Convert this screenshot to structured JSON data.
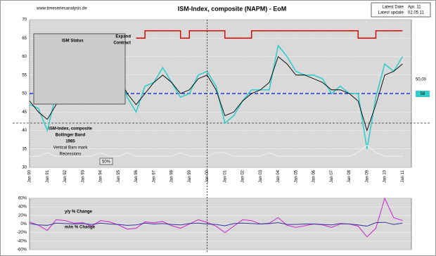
{
  "chart_data": [
    {
      "type": "line",
      "title": "ISM-Index, composite (NAPM) - EoM",
      "website": "www.timeseriesanalysis.de",
      "latest_date_label": "Latest Date",
      "latest_date": "Apr. 11",
      "latest_update_label": "Latest update",
      "latest_update": "02.05.11",
      "status_title": "ISM Status",
      "expand_label": "Expand",
      "contract_label": "Contract",
      "legend_lines": [
        "ISM-Index, composite",
        "Bollinger Band",
        "1985",
        "Vertical Bars mark",
        "Recessions"
      ],
      "band_label": "50%",
      "latest_value_label": "58",
      "x": [
        1990,
        1990.5,
        1991,
        1991.5,
        1992,
        1992.5,
        1993,
        1993.5,
        1994,
        1994.5,
        1995,
        1995.5,
        1996,
        1996.5,
        1997,
        1997.5,
        1998,
        1998.5,
        1999,
        1999.5,
        2000,
        2000.5,
        2001,
        2001.5,
        2002,
        2002.5,
        2003,
        2003.5,
        2004,
        2004.5,
        2005,
        2005.5,
        2006,
        2006.5,
        2007,
        2007.5,
        2008,
        2008.5,
        2009,
        2009.5,
        2010,
        2010.5,
        2011
      ],
      "series": [
        {
          "name": "ISM-Index, composite",
          "color": "#33cccc",
          "width": 1.6,
          "values": [
            47,
            46,
            40,
            50,
            52,
            53,
            55,
            50,
            56,
            58,
            57,
            49,
            45,
            52,
            53,
            57,
            53,
            49,
            50,
            55,
            56,
            52,
            42,
            44,
            48,
            51,
            51,
            51,
            63,
            60,
            56,
            55,
            55,
            54,
            50,
            52,
            50,
            50,
            35,
            49,
            58,
            56,
            60
          ]
        },
        {
          "color": "#000000",
          "width": 0.9,
          "values": [
            48,
            45,
            43,
            47,
            51,
            52,
            53,
            52,
            54,
            57,
            55,
            50,
            47,
            50,
            53,
            55,
            53,
            50,
            51,
            54,
            55,
            51,
            44,
            45,
            48,
            50,
            51,
            53,
            60,
            58,
            55,
            55,
            54,
            53,
            51,
            51,
            50,
            48,
            40,
            47,
            55,
            56,
            58
          ]
        },
        {
          "color": "#f0f0f0",
          "width": 1,
          "values": [
            33,
            33,
            34,
            33,
            33,
            33,
            33,
            33,
            34,
            33,
            33,
            34,
            33,
            33,
            33,
            33,
            33,
            34,
            33,
            33,
            33,
            34,
            34,
            33,
            33,
            33,
            33,
            34,
            33,
            33,
            33,
            33,
            33,
            33,
            33,
            33,
            33,
            34,
            36,
            34,
            33,
            33,
            33
          ]
        },
        {
          "color": "#dd0000",
          "width": 1.4,
          "step": true,
          "values": [
            null,
            null,
            null,
            null,
            null,
            null,
            null,
            null,
            null,
            null,
            null,
            null,
            65,
            67,
            67,
            67,
            67,
            65,
            67,
            67,
            67,
            67,
            65,
            65,
            65,
            67,
            67,
            67,
            67,
            67,
            67,
            67,
            67,
            67,
            67,
            67,
            67,
            65,
            65,
            67,
            67,
            67,
            67
          ]
        }
      ],
      "xlim": [
        1990,
        2011.5
      ],
      "ylim": [
        30,
        70
      ],
      "yticks": [
        30,
        35,
        40,
        45,
        50,
        55,
        60,
        65,
        70
      ],
      "xticks": [
        {
          "value": 1990,
          "label": "Jan 90"
        },
        {
          "value": 1991,
          "label": "Jan 91"
        },
        {
          "value": 1992,
          "label": "Jan 92"
        },
        {
          "value": 1993,
          "label": "Jan 93"
        },
        {
          "value": 1994,
          "label": "Jan 94"
        },
        {
          "value": 1995,
          "label": "Jan 95"
        },
        {
          "value": 1996,
          "label": "Jan 96"
        },
        {
          "value": 1997,
          "label": "Jan 97"
        },
        {
          "value": 1998,
          "label": "Jan 98"
        },
        {
          "value": 1999,
          "label": "Jan 99"
        },
        {
          "value": 2000,
          "label": "Jan 00"
        },
        {
          "value": 2001,
          "label": "Jan 01"
        },
        {
          "value": 2002,
          "label": "Jan 02"
        },
        {
          "value": 2003,
          "label": "Jan 03"
        },
        {
          "value": 2004,
          "label": "Jan 04"
        },
        {
          "value": 2005,
          "label": "Jan 05"
        },
        {
          "value": 2006,
          "label": "Jan 06"
        },
        {
          "value": 2007,
          "label": "Jan 07"
        },
        {
          "value": 2008,
          "label": "Jan 08"
        },
        {
          "value": 2009,
          "label": "Jan 09"
        },
        {
          "value": 2010,
          "label": "Jan 10"
        },
        {
          "value": 2011,
          "label": "Jan 11"
        }
      ],
      "threshold": {
        "value": 50,
        "label": "50,00"
      },
      "hline": 42,
      "vline": 2000,
      "grid": true
    },
    {
      "type": "line",
      "series": [
        {
          "name": "y/y % Change",
          "color": "#cc33cc",
          "width": 1.1,
          "values": [
            5,
            -3,
            -15,
            10,
            8,
            2,
            3,
            -5,
            8,
            5,
            -2,
            -12,
            -10,
            5,
            3,
            6,
            -4,
            -10,
            0,
            10,
            4,
            -5,
            -20,
            -5,
            10,
            8,
            0,
            2,
            15,
            -3,
            -8,
            -4,
            0,
            -2,
            -8,
            0,
            0,
            -5,
            -30,
            -10,
            60,
            15,
            8
          ]
        },
        {
          "name": "m/m % Change",
          "color": "#333399",
          "width": 1,
          "values": [
            1,
            -2,
            -3,
            2,
            1,
            0,
            1,
            -1,
            2,
            0,
            -1,
            -3,
            -2,
            2,
            0,
            1,
            -1,
            -2,
            1,
            2,
            0,
            -1,
            -4,
            1,
            2,
            1,
            0,
            1,
            3,
            -1,
            -1,
            0,
            0,
            -1,
            -2,
            1,
            0,
            -2,
            -5,
            3,
            4,
            -1,
            2
          ]
        }
      ],
      "ylim": [
        -60,
        60
      ],
      "yticks": [
        {
          "value": 60,
          "label": "60%"
        },
        {
          "value": 40,
          "label": "40%"
        },
        {
          "value": 20,
          "label": "20%"
        },
        {
          "value": 0,
          "label": "0%"
        },
        {
          "value": -20,
          "label": "-20%"
        },
        {
          "value": -40,
          "label": "-40%"
        },
        {
          "value": -60,
          "label": "-60%"
        }
      ],
      "grid": true
    }
  ]
}
